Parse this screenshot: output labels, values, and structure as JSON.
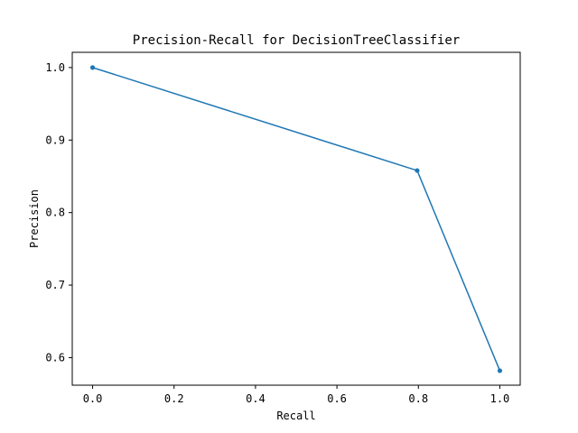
{
  "chart_data": {
    "type": "line",
    "title": "Precision-Recall for DecisionTreeClassifier",
    "xlabel": "Recall",
    "ylabel": "Precision",
    "xlim": [
      -0.05,
      1.05
    ],
    "ylim": [
      0.562,
      1.021
    ],
    "xticks": [
      0.0,
      0.2,
      0.4,
      0.6,
      0.8,
      1.0
    ],
    "xtick_labels": [
      "0.0",
      "0.2",
      "0.4",
      "0.6",
      "0.8",
      "1.0"
    ],
    "yticks": [
      0.6,
      0.7,
      0.8,
      0.9,
      1.0
    ],
    "ytick_labels": [
      "0.6",
      "0.7",
      "0.8",
      "0.9",
      "1.0"
    ],
    "grid": false,
    "series": [
      {
        "color": "#1f77b4",
        "marker": "circle",
        "x": [
          0.0,
          0.797,
          1.0
        ],
        "y": [
          1.0,
          0.858,
          0.582
        ]
      }
    ]
  }
}
